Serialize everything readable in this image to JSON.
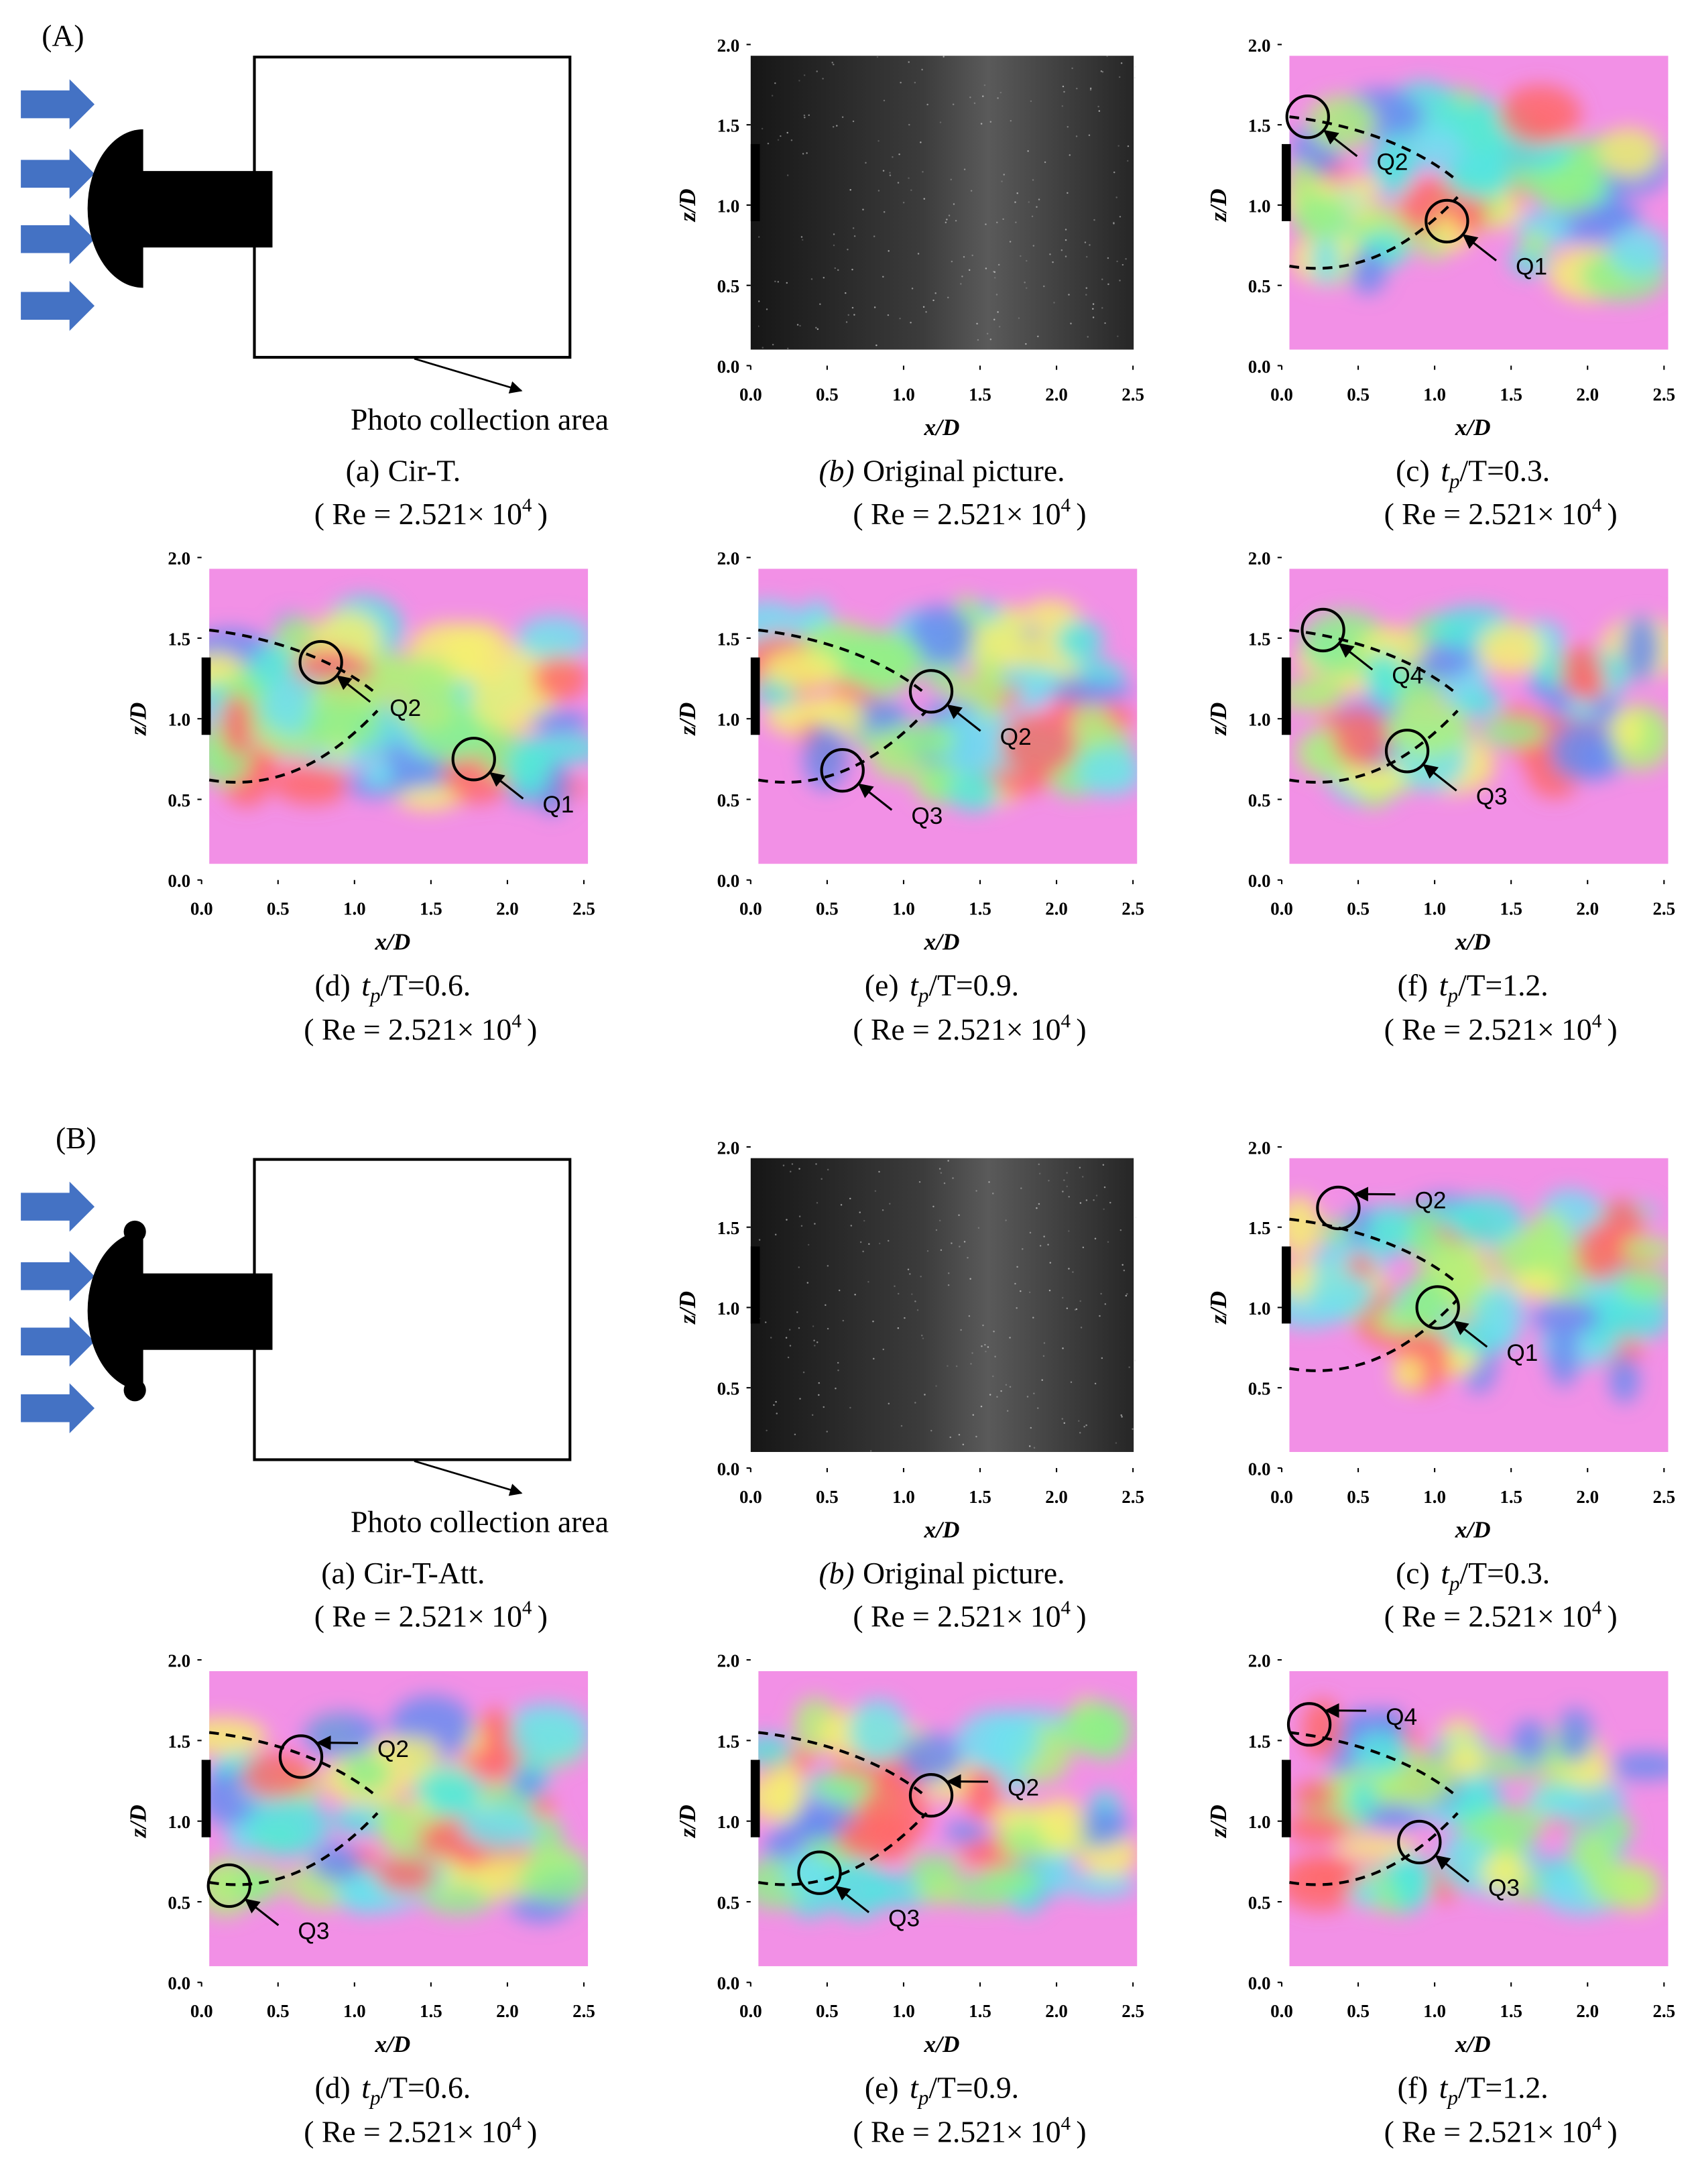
{
  "axes": {
    "xlabel": "x/D",
    "ylabel": "z/D",
    "xlim": [
      0,
      2.5
    ],
    "ylim": [
      0,
      2
    ],
    "xticks": [
      {
        "value": 0,
        "label": "0.0"
      },
      {
        "value": 0.5,
        "label": "0.5"
      },
      {
        "value": 1,
        "label": "1.0"
      },
      {
        "value": 1.5,
        "label": "1.5"
      },
      {
        "value": 2,
        "label": "2.0"
      },
      {
        "value": 2.5,
        "label": "2.5"
      }
    ],
    "yticks": [
      {
        "value": 0,
        "label": "0.0"
      },
      {
        "value": 0.5,
        "label": "0.5"
      },
      {
        "value": 1,
        "label": "1.0"
      },
      {
        "value": 1.5,
        "label": "1.5"
      },
      {
        "value": 2,
        "label": "2.0"
      }
    ]
  },
  "re": {
    "text": "( Re = 2.521×",
    "base": "10",
    "exp": "4",
    "close": ")"
  },
  "photo_area": "Photo collection area",
  "sections": [
    {
      "label": "(A)",
      "panels": [
        {
          "kind": "diagram",
          "attached": false,
          "caption": {
            "prefix": "(a)",
            "text": "Cir-T."
          }
        },
        {
          "kind": "original",
          "caption": {
            "prefix": "(b)",
            "text": "Original picture."
          }
        },
        {
          "kind": "field",
          "caption": {
            "prefix": "(c)",
            "var": "t",
            "sub": "p",
            "text": "/T=0.3."
          },
          "vortices": [
            {
              "label": "Q2",
              "x": 0.17,
              "z": 1.55
            },
            {
              "label": "Q1",
              "x": 1.08,
              "z": 0.9
            }
          ]
        },
        {
          "kind": "field",
          "caption": {
            "prefix": "(d)",
            "var": "t",
            "sub": "p",
            "text": "/T=0.6."
          },
          "vortices": [
            {
              "label": "Q2",
              "x": 0.78,
              "z": 1.35
            },
            {
              "label": "Q1",
              "x": 1.78,
              "z": 0.75
            }
          ]
        },
        {
          "kind": "field",
          "caption": {
            "prefix": "(e)",
            "var": "t",
            "sub": "p",
            "text": "/T=0.9."
          },
          "vortices": [
            {
              "label": "Q2",
              "x": 1.18,
              "z": 1.17
            },
            {
              "label": "Q3",
              "x": 0.6,
              "z": 0.68
            }
          ]
        },
        {
          "kind": "field",
          "caption": {
            "prefix": "(f)",
            "var": "t",
            "sub": "p",
            "text": "/T=1.2."
          },
          "vortices": [
            {
              "label": "Q4",
              "x": 0.27,
              "z": 1.55
            },
            {
              "label": "Q3",
              "x": 0.82,
              "z": 0.8
            }
          ]
        }
      ]
    },
    {
      "label": "(B)",
      "panels": [
        {
          "kind": "diagram",
          "attached": true,
          "caption": {
            "prefix": "(a)",
            "text": "Cir-T-Att."
          }
        },
        {
          "kind": "original",
          "caption": {
            "prefix": "(b)",
            "text": "Original picture."
          }
        },
        {
          "kind": "field",
          "caption": {
            "prefix": "(c)",
            "var": "t",
            "sub": "p",
            "text": "/T=0.3."
          },
          "vortices": [
            {
              "label": "Q2",
              "x": 0.37,
              "z": 1.62
            },
            {
              "label": "Q1",
              "x": 1.02,
              "z": 1.0
            }
          ]
        },
        {
          "kind": "field",
          "caption": {
            "prefix": "(d)",
            "var": "t",
            "sub": "p",
            "text": "/T=0.6."
          },
          "vortices": [
            {
              "label": "Q2",
              "x": 0.65,
              "z": 1.4
            },
            {
              "label": "Q3",
              "x": 0.18,
              "z": 0.6
            }
          ]
        },
        {
          "kind": "field",
          "caption": {
            "prefix": "(e)",
            "var": "t",
            "sub": "p",
            "text": "/T=0.9."
          },
          "vortices": [
            {
              "label": "Q2",
              "x": 1.18,
              "z": 1.16
            },
            {
              "label": "Q3",
              "x": 0.45,
              "z": 0.68
            }
          ]
        },
        {
          "kind": "field",
          "caption": {
            "prefix": "(f)",
            "var": "t",
            "sub": "p",
            "text": "/T=1.2."
          },
          "vortices": [
            {
              "label": "Q4",
              "x": 0.18,
              "z": 1.6
            },
            {
              "label": "Q3",
              "x": 0.9,
              "z": 0.87
            }
          ]
        }
      ]
    }
  ]
}
